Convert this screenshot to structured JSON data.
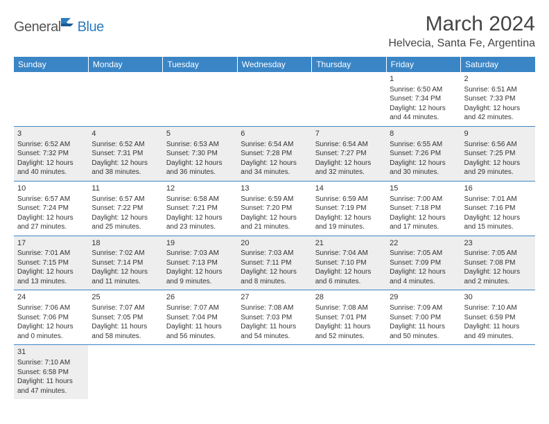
{
  "logo": {
    "text1": "General",
    "text2": "Blue"
  },
  "title": "March 2024",
  "location": "Helvecia, Santa Fe, Argentina",
  "colors": {
    "header_bg": "#3a85c6",
    "header_text": "#ffffff",
    "shade_bg": "#eeeeee",
    "rule": "#3a85c6",
    "logo_blue": "#2b7bbf",
    "text": "#333333"
  },
  "weekdays": [
    "Sunday",
    "Monday",
    "Tuesday",
    "Wednesday",
    "Thursday",
    "Friday",
    "Saturday"
  ],
  "weeks": [
    {
      "shaded": false,
      "days": [
        null,
        null,
        null,
        null,
        null,
        {
          "n": "1",
          "sr": "6:50 AM",
          "ss": "7:34 PM",
          "dl": "12 hours and 44 minutes."
        },
        {
          "n": "2",
          "sr": "6:51 AM",
          "ss": "7:33 PM",
          "dl": "12 hours and 42 minutes."
        }
      ]
    },
    {
      "shaded": true,
      "days": [
        {
          "n": "3",
          "sr": "6:52 AM",
          "ss": "7:32 PM",
          "dl": "12 hours and 40 minutes."
        },
        {
          "n": "4",
          "sr": "6:52 AM",
          "ss": "7:31 PM",
          "dl": "12 hours and 38 minutes."
        },
        {
          "n": "5",
          "sr": "6:53 AM",
          "ss": "7:30 PM",
          "dl": "12 hours and 36 minutes."
        },
        {
          "n": "6",
          "sr": "6:54 AM",
          "ss": "7:28 PM",
          "dl": "12 hours and 34 minutes."
        },
        {
          "n": "7",
          "sr": "6:54 AM",
          "ss": "7:27 PM",
          "dl": "12 hours and 32 minutes."
        },
        {
          "n": "8",
          "sr": "6:55 AM",
          "ss": "7:26 PM",
          "dl": "12 hours and 30 minutes."
        },
        {
          "n": "9",
          "sr": "6:56 AM",
          "ss": "7:25 PM",
          "dl": "12 hours and 29 minutes."
        }
      ]
    },
    {
      "shaded": false,
      "days": [
        {
          "n": "10",
          "sr": "6:57 AM",
          "ss": "7:24 PM",
          "dl": "12 hours and 27 minutes."
        },
        {
          "n": "11",
          "sr": "6:57 AM",
          "ss": "7:22 PM",
          "dl": "12 hours and 25 minutes."
        },
        {
          "n": "12",
          "sr": "6:58 AM",
          "ss": "7:21 PM",
          "dl": "12 hours and 23 minutes."
        },
        {
          "n": "13",
          "sr": "6:59 AM",
          "ss": "7:20 PM",
          "dl": "12 hours and 21 minutes."
        },
        {
          "n": "14",
          "sr": "6:59 AM",
          "ss": "7:19 PM",
          "dl": "12 hours and 19 minutes."
        },
        {
          "n": "15",
          "sr": "7:00 AM",
          "ss": "7:18 PM",
          "dl": "12 hours and 17 minutes."
        },
        {
          "n": "16",
          "sr": "7:01 AM",
          "ss": "7:16 PM",
          "dl": "12 hours and 15 minutes."
        }
      ]
    },
    {
      "shaded": true,
      "days": [
        {
          "n": "17",
          "sr": "7:01 AM",
          "ss": "7:15 PM",
          "dl": "12 hours and 13 minutes."
        },
        {
          "n": "18",
          "sr": "7:02 AM",
          "ss": "7:14 PM",
          "dl": "12 hours and 11 minutes."
        },
        {
          "n": "19",
          "sr": "7:03 AM",
          "ss": "7:13 PM",
          "dl": "12 hours and 9 minutes."
        },
        {
          "n": "20",
          "sr": "7:03 AM",
          "ss": "7:11 PM",
          "dl": "12 hours and 8 minutes."
        },
        {
          "n": "21",
          "sr": "7:04 AM",
          "ss": "7:10 PM",
          "dl": "12 hours and 6 minutes."
        },
        {
          "n": "22",
          "sr": "7:05 AM",
          "ss": "7:09 PM",
          "dl": "12 hours and 4 minutes."
        },
        {
          "n": "23",
          "sr": "7:05 AM",
          "ss": "7:08 PM",
          "dl": "12 hours and 2 minutes."
        }
      ]
    },
    {
      "shaded": false,
      "days": [
        {
          "n": "24",
          "sr": "7:06 AM",
          "ss": "7:06 PM",
          "dl": "12 hours and 0 minutes."
        },
        {
          "n": "25",
          "sr": "7:07 AM",
          "ss": "7:05 PM",
          "dl": "11 hours and 58 minutes."
        },
        {
          "n": "26",
          "sr": "7:07 AM",
          "ss": "7:04 PM",
          "dl": "11 hours and 56 minutes."
        },
        {
          "n": "27",
          "sr": "7:08 AM",
          "ss": "7:03 PM",
          "dl": "11 hours and 54 minutes."
        },
        {
          "n": "28",
          "sr": "7:08 AM",
          "ss": "7:01 PM",
          "dl": "11 hours and 52 minutes."
        },
        {
          "n": "29",
          "sr": "7:09 AM",
          "ss": "7:00 PM",
          "dl": "11 hours and 50 minutes."
        },
        {
          "n": "30",
          "sr": "7:10 AM",
          "ss": "6:59 PM",
          "dl": "11 hours and 49 minutes."
        }
      ]
    },
    {
      "shaded": true,
      "days": [
        {
          "n": "31",
          "sr": "7:10 AM",
          "ss": "6:58 PM",
          "dl": "11 hours and 47 minutes."
        },
        null,
        null,
        null,
        null,
        null,
        null
      ]
    }
  ],
  "labels": {
    "sunrise": "Sunrise:",
    "sunset": "Sunset:",
    "daylight": "Daylight:"
  }
}
